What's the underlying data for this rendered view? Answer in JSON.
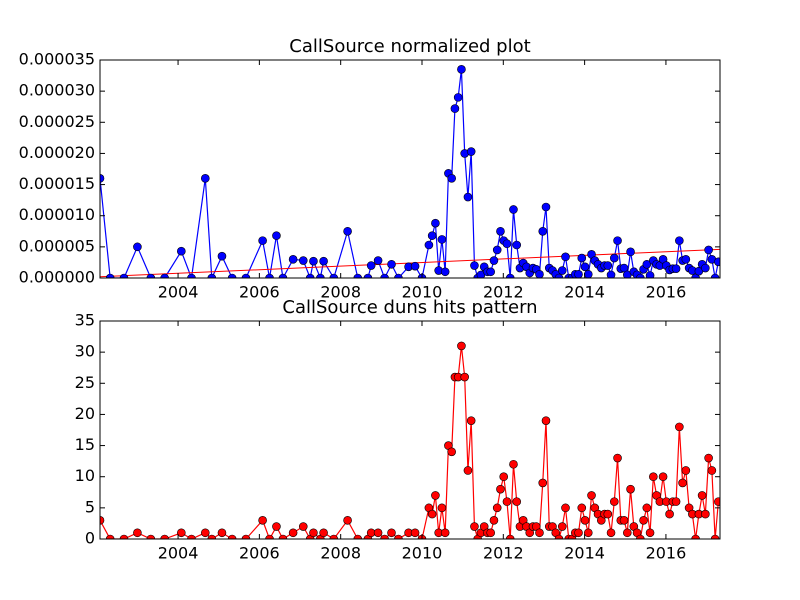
{
  "chart_data": [
    {
      "type": "line",
      "title": "CallSource normalized plot",
      "color": "#0000ff",
      "marker_edge": "#000000",
      "x": [
        2002.08,
        2002.33,
        2002.67,
        2003.0,
        2003.33,
        2003.67,
        2004.08,
        2004.33,
        2004.67,
        2004.83,
        2005.08,
        2005.33,
        2005.67,
        2006.08,
        2006.25,
        2006.42,
        2006.58,
        2006.83,
        2007.08,
        2007.25,
        2007.33,
        2007.5,
        2007.58,
        2007.83,
        2008.17,
        2008.42,
        2008.67,
        2008.75,
        2008.92,
        2009.08,
        2009.25,
        2009.42,
        2009.67,
        2009.83,
        2010.0,
        2010.17,
        2010.25,
        2010.33,
        2010.41,
        2010.49,
        2010.57,
        2010.65,
        2010.73,
        2010.81,
        2010.89,
        2010.97,
        2011.05,
        2011.13,
        2011.21,
        2011.29,
        2011.37,
        2011.45,
        2011.53,
        2011.61,
        2011.69,
        2011.77,
        2011.85,
        2011.93,
        2012.01,
        2012.09,
        2012.17,
        2012.25,
        2012.33,
        2012.41,
        2012.49,
        2012.57,
        2012.65,
        2012.73,
        2012.81,
        2012.89,
        2012.97,
        2013.05,
        2013.13,
        2013.21,
        2013.29,
        2013.37,
        2013.45,
        2013.53,
        2013.61,
        2013.69,
        2013.77,
        2013.85,
        2013.93,
        2014.01,
        2014.09,
        2014.17,
        2014.25,
        2014.33,
        2014.41,
        2014.49,
        2014.57,
        2014.65,
        2014.73,
        2014.81,
        2014.89,
        2014.97,
        2015.05,
        2015.13,
        2015.21,
        2015.29,
        2015.37,
        2015.45,
        2015.53,
        2015.61,
        2015.69,
        2015.77,
        2015.85,
        2015.93,
        2016.01,
        2016.09,
        2016.17,
        2016.25,
        2016.33,
        2016.41,
        2016.49,
        2016.57,
        2016.65,
        2016.73,
        2016.81,
        2016.89,
        2016.97,
        2017.05,
        2017.13,
        2017.21,
        2017.29
      ],
      "values": [
        1.6e-05,
        0,
        0,
        5e-06,
        0,
        0,
        4.3e-06,
        0,
        1.6e-05,
        0,
        3.5e-06,
        0,
        0,
        6e-06,
        0,
        6.8e-06,
        0,
        3e-06,
        2.8e-06,
        0,
        2.7e-06,
        0,
        2.7e-06,
        0,
        7.5e-06,
        0,
        0,
        2e-06,
        2.8e-06,
        0,
        2.2e-06,
        0,
        1.8e-06,
        1.9e-06,
        0,
        5.3e-06,
        6.8e-06,
        8.8e-06,
        1.2e-06,
        6.2e-06,
        1e-06,
        1.68e-05,
        1.6e-05,
        2.72e-05,
        2.9e-05,
        3.35e-05,
        2e-05,
        1.3e-05,
        2.03e-05,
        2e-06,
        0,
        5e-07,
        1.8e-06,
        1e-06,
        1e-06,
        2.8e-06,
        4.5e-06,
        7.5e-06,
        6e-06,
        5.5e-06,
        0,
        1.1e-05,
        5.3e-06,
        1.6e-06,
        2.4e-06,
        1.8e-06,
        8e-07,
        1.6e-06,
        1.4e-06,
        6e-07,
        7.5e-06,
        1.14e-05,
        1.6e-06,
        1.2e-06,
        6e-07,
        0,
        1.2e-06,
        3.4e-06,
        0,
        0,
        6e-07,
        6e-07,
        3.2e-06,
        1.8e-06,
        6e-07,
        3.8e-06,
        2.8e-06,
        2.2e-06,
        1.6e-06,
        2e-06,
        2e-06,
        5e-07,
        3.2e-06,
        6e-06,
        1.5e-06,
        1.6e-06,
        5e-07,
        4.2e-06,
        1e-06,
        5e-07,
        0,
        1.4e-06,
        2.2e-06,
        4e-07,
        2.8e-06,
        2.2e-06,
        2e-06,
        3e-06,
        2e-06,
        1.3e-06,
        1.5e-06,
        1.5e-06,
        6e-06,
        2.8e-06,
        3e-06,
        1.6e-06,
        1.2e-06,
        0,
        1.1e-06,
        2.2e-06,
        1.6e-06,
        4.5e-06,
        3e-06,
        0,
        2.6e-06
      ],
      "trend": {
        "x": [
          2002.08,
          2017.33
        ],
        "values": [
          2e-07,
          4.6e-06
        ],
        "color": "#ff0000"
      },
      "xlim": [
        2002.08,
        2017.33
      ],
      "xticks": [
        2004,
        2006,
        2008,
        2010,
        2012,
        2014,
        2016
      ],
      "ylim": [
        0,
        3.5e-05
      ],
      "yticks": [
        {
          "value": 0,
          "label": "0.000000"
        },
        5e-06,
        {
          "value": 1e-05,
          "label": "0.000010"
        },
        1.5e-05,
        {
          "value": 2e-05,
          "label": "0.000020"
        },
        2.5e-05,
        {
          "value": 3e-05,
          "label": "0.000030"
        },
        3.5e-05
      ]
    },
    {
      "type": "line",
      "title": "CallSource duns hits pattern",
      "color": "#ff0000",
      "marker_edge": "#000000",
      "x": [
        2002.08,
        2002.33,
        2002.67,
        2003.0,
        2003.33,
        2003.67,
        2004.08,
        2004.33,
        2004.67,
        2004.83,
        2005.08,
        2005.33,
        2005.67,
        2006.08,
        2006.25,
        2006.42,
        2006.58,
        2006.83,
        2007.08,
        2007.25,
        2007.33,
        2007.5,
        2007.58,
        2007.83,
        2008.17,
        2008.42,
        2008.67,
        2008.75,
        2008.92,
        2009.08,
        2009.25,
        2009.42,
        2009.67,
        2009.83,
        2010.0,
        2010.17,
        2010.25,
        2010.33,
        2010.41,
        2010.49,
        2010.57,
        2010.65,
        2010.73,
        2010.81,
        2010.89,
        2010.97,
        2011.05,
        2011.13,
        2011.21,
        2011.29,
        2011.37,
        2011.45,
        2011.53,
        2011.61,
        2011.69,
        2011.77,
        2011.85,
        2011.93,
        2012.01,
        2012.09,
        2012.17,
        2012.25,
        2012.33,
        2012.41,
        2012.49,
        2012.57,
        2012.65,
        2012.73,
        2012.81,
        2012.89,
        2012.97,
        2013.05,
        2013.13,
        2013.21,
        2013.29,
        2013.37,
        2013.45,
        2013.53,
        2013.61,
        2013.69,
        2013.77,
        2013.85,
        2013.93,
        2014.01,
        2014.09,
        2014.17,
        2014.25,
        2014.33,
        2014.41,
        2014.49,
        2014.57,
        2014.65,
        2014.73,
        2014.81,
        2014.89,
        2014.97,
        2015.05,
        2015.13,
        2015.21,
        2015.29,
        2015.37,
        2015.45,
        2015.53,
        2015.61,
        2015.69,
        2015.77,
        2015.85,
        2015.93,
        2016.01,
        2016.09,
        2016.17,
        2016.25,
        2016.33,
        2016.41,
        2016.49,
        2016.57,
        2016.65,
        2016.73,
        2016.81,
        2016.89,
        2016.97,
        2017.05,
        2017.13,
        2017.21,
        2017.29
      ],
      "values": [
        3,
        0,
        0,
        1,
        0,
        0,
        1,
        0,
        1,
        0,
        1,
        0,
        0,
        3,
        0,
        2,
        0,
        1,
        2,
        0,
        1,
        0,
        1,
        0,
        3,
        0,
        0,
        1,
        1,
        0,
        1,
        0,
        1,
        1,
        0,
        5,
        4,
        7,
        1,
        5,
        1,
        15,
        14,
        26,
        26,
        31,
        26,
        11,
        19,
        2,
        0,
        1,
        2,
        1,
        1,
        3,
        5,
        8,
        10,
        6,
        0,
        12,
        6,
        2,
        3,
        2,
        1,
        2,
        2,
        1,
        9,
        19,
        2,
        2,
        1,
        0,
        2,
        5,
        0,
        0,
        1,
        1,
        5,
        3,
        1,
        7,
        5,
        4,
        3,
        4,
        4,
        1,
        6,
        13,
        3,
        3,
        1,
        8,
        2,
        1,
        0,
        3,
        5,
        1,
        10,
        7,
        6,
        10,
        6,
        4,
        6,
        6,
        18,
        9,
        11,
        5,
        4,
        0,
        4,
        7,
        4,
        13,
        11,
        0,
        6
      ],
      "xlim": [
        2002.08,
        2017.33
      ],
      "xticks": [
        2004,
        2006,
        2008,
        2010,
        2012,
        2014,
        2016
      ],
      "ylim": [
        0,
        35
      ],
      "yticks": [
        0,
        5,
        10,
        15,
        20,
        25,
        30,
        35
      ]
    }
  ]
}
